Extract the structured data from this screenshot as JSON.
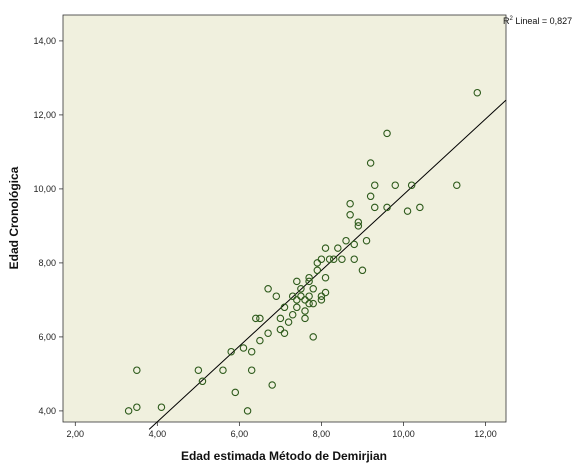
{
  "chart_data": {
    "type": "scatter",
    "title": "",
    "xlabel": "Edad estimada Método de Demirjian",
    "ylabel": "Edad Cronológica",
    "xlim": [
      1.7,
      12.5
    ],
    "ylim": [
      3.7,
      14.7
    ],
    "xticks": [
      2,
      4,
      6,
      8,
      10,
      12
    ],
    "xtick_labels": [
      "2,00",
      "4,00",
      "6,00",
      "8,00",
      "10,00",
      "12,00"
    ],
    "yticks": [
      4,
      6,
      8,
      10,
      12,
      14
    ],
    "ytick_labels": [
      "4,00",
      "6,00",
      "8,00",
      "10,00",
      "12,00",
      "14,00"
    ],
    "grid": false,
    "plot_background": "#f0f0de",
    "marker_color": "#2d5a1b",
    "fit_line_color": "#000000",
    "fit_line": {
      "type": "linear",
      "from": [
        3.8,
        3.5
      ],
      "to": [
        12.5,
        12.4
      ]
    },
    "r2_label": {
      "prefix": "R",
      "superscript": "2",
      "text": " Lineal = 0,827"
    },
    "points": [
      {
        "x": 3.3,
        "y": 4.0
      },
      {
        "x": 3.5,
        "y": 4.1
      },
      {
        "x": 3.5,
        "y": 5.1
      },
      {
        "x": 4.1,
        "y": 4.1
      },
      {
        "x": 5.0,
        "y": 5.1
      },
      {
        "x": 5.1,
        "y": 4.8
      },
      {
        "x": 5.6,
        "y": 5.1
      },
      {
        "x": 5.8,
        "y": 5.6
      },
      {
        "x": 5.9,
        "y": 4.5
      },
      {
        "x": 6.1,
        "y": 5.7
      },
      {
        "x": 6.2,
        "y": 4.0
      },
      {
        "x": 6.3,
        "y": 5.1
      },
      {
        "x": 6.3,
        "y": 5.6
      },
      {
        "x": 6.4,
        "y": 6.5
      },
      {
        "x": 6.5,
        "y": 6.5
      },
      {
        "x": 6.5,
        "y": 5.9
      },
      {
        "x": 6.7,
        "y": 6.1
      },
      {
        "x": 6.7,
        "y": 7.3
      },
      {
        "x": 6.8,
        "y": 4.7
      },
      {
        "x": 6.9,
        "y": 7.1
      },
      {
        "x": 7.0,
        "y": 6.5
      },
      {
        "x": 7.0,
        "y": 6.2
      },
      {
        "x": 7.1,
        "y": 6.8
      },
      {
        "x": 7.1,
        "y": 6.1
      },
      {
        "x": 7.2,
        "y": 6.4
      },
      {
        "x": 7.3,
        "y": 7.1
      },
      {
        "x": 7.3,
        "y": 6.6
      },
      {
        "x": 7.4,
        "y": 7.5
      },
      {
        "x": 7.4,
        "y": 7.0
      },
      {
        "x": 7.4,
        "y": 6.8
      },
      {
        "x": 7.5,
        "y": 7.3
      },
      {
        "x": 7.5,
        "y": 7.1
      },
      {
        "x": 7.6,
        "y": 6.7
      },
      {
        "x": 7.6,
        "y": 6.5
      },
      {
        "x": 7.6,
        "y": 7.0
      },
      {
        "x": 7.7,
        "y": 7.5
      },
      {
        "x": 7.7,
        "y": 6.9
      },
      {
        "x": 7.7,
        "y": 7.6
      },
      {
        "x": 7.7,
        "y": 7.1
      },
      {
        "x": 7.8,
        "y": 6.0
      },
      {
        "x": 7.8,
        "y": 7.3
      },
      {
        "x": 7.8,
        "y": 6.9
      },
      {
        "x": 7.9,
        "y": 8.0
      },
      {
        "x": 7.9,
        "y": 7.8
      },
      {
        "x": 8.0,
        "y": 8.1
      },
      {
        "x": 8.0,
        "y": 7.1
      },
      {
        "x": 8.0,
        "y": 7.0
      },
      {
        "x": 8.1,
        "y": 8.4
      },
      {
        "x": 8.1,
        "y": 7.2
      },
      {
        "x": 8.1,
        "y": 7.6
      },
      {
        "x": 8.2,
        "y": 8.1
      },
      {
        "x": 8.3,
        "y": 8.1
      },
      {
        "x": 8.4,
        "y": 8.4
      },
      {
        "x": 8.5,
        "y": 8.1
      },
      {
        "x": 8.6,
        "y": 8.6
      },
      {
        "x": 8.7,
        "y": 9.6
      },
      {
        "x": 8.7,
        "y": 9.3
      },
      {
        "x": 8.8,
        "y": 8.5
      },
      {
        "x": 8.8,
        "y": 8.1
      },
      {
        "x": 8.9,
        "y": 9.1
      },
      {
        "x": 8.9,
        "y": 9.0
      },
      {
        "x": 9.0,
        "y": 7.8
      },
      {
        "x": 9.1,
        "y": 8.6
      },
      {
        "x": 9.2,
        "y": 10.7
      },
      {
        "x": 9.2,
        "y": 9.8
      },
      {
        "x": 9.3,
        "y": 10.1
      },
      {
        "x": 9.3,
        "y": 9.5
      },
      {
        "x": 9.6,
        "y": 11.5
      },
      {
        "x": 9.6,
        "y": 9.5
      },
      {
        "x": 9.8,
        "y": 10.1
      },
      {
        "x": 10.1,
        "y": 9.4
      },
      {
        "x": 10.2,
        "y": 10.1
      },
      {
        "x": 10.4,
        "y": 9.5
      },
      {
        "x": 11.3,
        "y": 10.1
      },
      {
        "x": 11.8,
        "y": 12.6
      }
    ]
  }
}
